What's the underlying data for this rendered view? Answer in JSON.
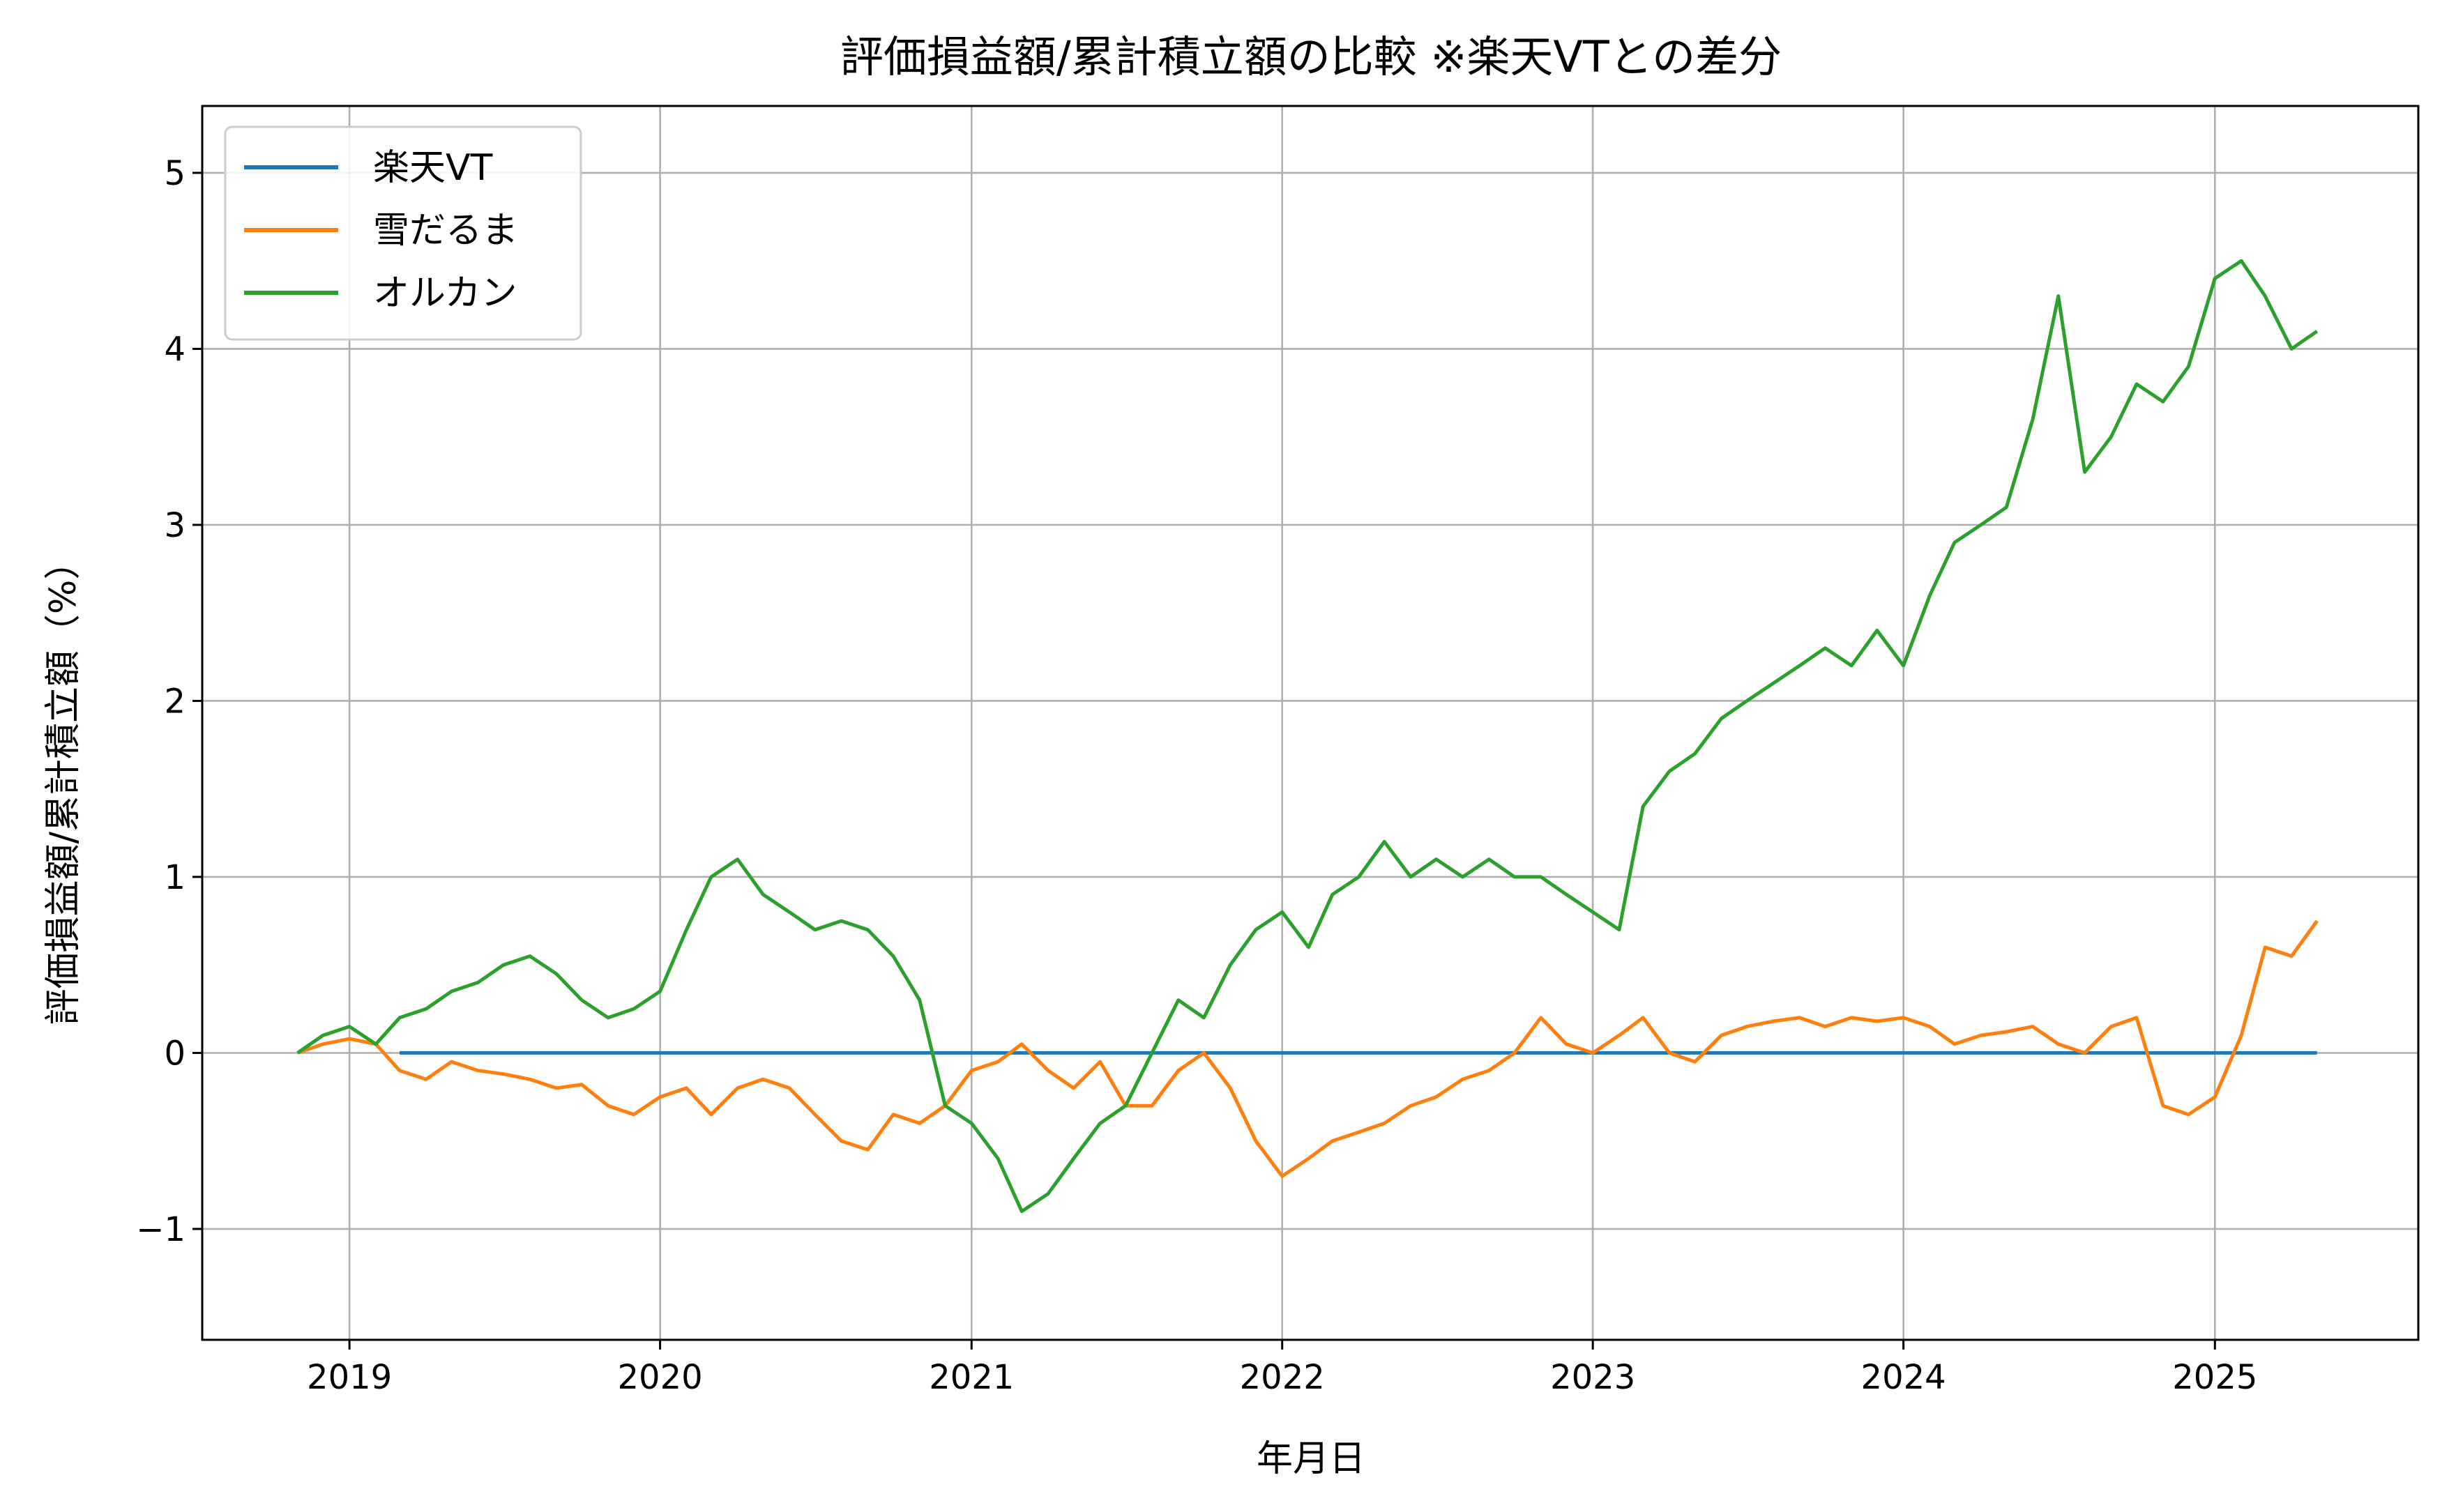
{
  "chart_data": {
    "type": "line",
    "title": "評価損益額/累計積立額の比較 ※楽天VTとの差分",
    "xlabel": "年月日",
    "ylabel": "評価損益額/累計積立額（%）",
    "x_ticks": [
      "2019",
      "2020",
      "2021",
      "2022",
      "2023",
      "2024",
      "2025"
    ],
    "y_ticks": [
      "−1",
      "0",
      "1",
      "2",
      "3",
      "4",
      "5"
    ],
    "xlim": [
      "2018-07-12",
      "2025-08-28"
    ],
    "ylim": [
      -1.63,
      5.38
    ],
    "grid": true,
    "legend_position": "upper-left",
    "colors": {
      "rakuten_vt": "#1f77b4",
      "yukidaruma": "#ff7f0e",
      "orukan": "#2ca02c"
    },
    "series": [
      {
        "name": "楽天VT",
        "color": "#1f77b4",
        "x": [
          "2019-03-01",
          "2025-05-01"
        ],
        "values": [
          0,
          0
        ]
      },
      {
        "name": "雪だるま",
        "color": "#ff7f0e",
        "x": [
          "2018-11-01",
          "2018-12-01",
          "2019-01-01",
          "2019-02-01",
          "2019-03-01",
          "2019-04-01",
          "2019-05-01",
          "2019-06-01",
          "2019-07-01",
          "2019-08-01",
          "2019-09-01",
          "2019-10-01",
          "2019-11-01",
          "2019-12-01",
          "2020-01-01",
          "2020-02-01",
          "2020-03-01",
          "2020-04-01",
          "2020-05-01",
          "2020-06-01",
          "2020-07-01",
          "2020-08-01",
          "2020-09-01",
          "2020-10-01",
          "2020-11-01",
          "2020-12-01",
          "2021-01-01",
          "2021-02-01",
          "2021-03-01",
          "2021-04-01",
          "2021-05-01",
          "2021-06-01",
          "2021-07-01",
          "2021-08-01",
          "2021-09-01",
          "2021-10-01",
          "2021-11-01",
          "2021-12-01",
          "2022-01-01",
          "2022-02-01",
          "2022-03-01",
          "2022-04-01",
          "2022-05-01",
          "2022-06-01",
          "2022-07-01",
          "2022-08-01",
          "2022-09-01",
          "2022-10-01",
          "2022-11-01",
          "2022-12-01",
          "2023-01-01",
          "2023-02-01",
          "2023-03-01",
          "2023-04-01",
          "2023-05-01",
          "2023-06-01",
          "2023-07-01",
          "2023-08-01",
          "2023-09-01",
          "2023-10-01",
          "2023-11-01",
          "2023-12-01",
          "2024-01-01",
          "2024-02-01",
          "2024-03-01",
          "2024-04-01",
          "2024-05-01",
          "2024-06-01",
          "2024-07-01",
          "2024-08-01",
          "2024-09-01",
          "2024-10-01",
          "2024-11-01",
          "2024-12-01",
          "2025-01-01",
          "2025-02-01",
          "2025-03-01",
          "2025-04-01",
          "2025-05-01"
        ],
        "values": [
          0.0,
          0.05,
          0.08,
          0.05,
          -0.1,
          -0.15,
          -0.05,
          -0.1,
          -0.12,
          -0.15,
          -0.2,
          -0.18,
          -0.3,
          -0.35,
          -0.25,
          -0.2,
          -0.35,
          -0.2,
          -0.15,
          -0.2,
          -0.35,
          -0.5,
          -0.55,
          -0.35,
          -0.4,
          -0.3,
          -0.1,
          -0.05,
          0.05,
          -0.1,
          -0.2,
          -0.05,
          -0.3,
          -0.3,
          -0.1,
          0.0,
          -0.2,
          -0.5,
          -0.7,
          -0.6,
          -0.5,
          -0.45,
          -0.4,
          -0.3,
          -0.25,
          -0.15,
          -0.1,
          0.0,
          0.2,
          0.05,
          0.0,
          0.1,
          0.2,
          0.0,
          -0.05,
          0.1,
          0.15,
          0.18,
          0.2,
          0.15,
          0.2,
          0.18,
          0.2,
          0.15,
          0.05,
          0.1,
          0.12,
          0.15,
          0.05,
          0.0,
          0.15,
          0.2,
          -0.3,
          -0.35,
          -0.25,
          0.1,
          0.6,
          0.55,
          0.75
        ]
      },
      {
        "name": "オルカン",
        "color": "#2ca02c",
        "x": [
          "2018-11-01",
          "2018-12-01",
          "2019-01-01",
          "2019-02-01",
          "2019-03-01",
          "2019-04-01",
          "2019-05-01",
          "2019-06-01",
          "2019-07-01",
          "2019-08-01",
          "2019-09-01",
          "2019-10-01",
          "2019-11-01",
          "2019-12-01",
          "2020-01-01",
          "2020-02-01",
          "2020-03-01",
          "2020-04-01",
          "2020-05-01",
          "2020-06-01",
          "2020-07-01",
          "2020-08-01",
          "2020-09-01",
          "2020-10-01",
          "2020-11-01",
          "2020-12-01",
          "2021-01-01",
          "2021-02-01",
          "2021-03-01",
          "2021-04-01",
          "2021-05-01",
          "2021-06-01",
          "2021-07-01",
          "2021-08-01",
          "2021-09-01",
          "2021-10-01",
          "2021-11-01",
          "2021-12-01",
          "2022-01-01",
          "2022-02-01",
          "2022-03-01",
          "2022-04-01",
          "2022-05-01",
          "2022-06-01",
          "2022-07-01",
          "2022-08-01",
          "2022-09-01",
          "2022-10-01",
          "2022-11-01",
          "2022-12-01",
          "2023-01-01",
          "2023-02-01",
          "2023-03-01",
          "2023-04-01",
          "2023-05-01",
          "2023-06-01",
          "2023-07-01",
          "2023-08-01",
          "2023-09-01",
          "2023-10-01",
          "2023-11-01",
          "2023-12-01",
          "2024-01-01",
          "2024-02-01",
          "2024-03-01",
          "2024-04-01",
          "2024-05-01",
          "2024-06-01",
          "2024-07-01",
          "2024-08-01",
          "2024-09-01",
          "2024-10-01",
          "2024-11-01",
          "2024-12-01",
          "2025-01-01",
          "2025-02-01",
          "2025-03-01",
          "2025-04-01",
          "2025-05-01"
        ],
        "values": [
          0.0,
          0.1,
          0.15,
          0.05,
          0.2,
          0.25,
          0.35,
          0.4,
          0.5,
          0.55,
          0.45,
          0.3,
          0.2,
          0.25,
          0.35,
          0.7,
          1.0,
          1.1,
          0.9,
          0.8,
          0.7,
          0.75,
          0.7,
          0.55,
          0.3,
          -0.3,
          -0.4,
          -0.6,
          -0.9,
          -0.8,
          -0.6,
          -0.4,
          -0.3,
          0.0,
          0.3,
          0.2,
          0.5,
          0.7,
          0.8,
          0.6,
          0.9,
          1.0,
          1.2,
          1.0,
          1.1,
          1.0,
          1.1,
          1.0,
          1.0,
          0.9,
          0.8,
          0.7,
          1.4,
          1.6,
          1.7,
          1.9,
          2.0,
          2.1,
          2.2,
          2.3,
          2.2,
          2.4,
          2.2,
          2.6,
          2.9,
          3.0,
          3.1,
          3.6,
          4.3,
          3.3,
          3.5,
          3.8,
          3.7,
          3.9,
          4.4,
          4.5,
          4.3,
          4.0,
          4.1
        ]
      }
    ]
  }
}
